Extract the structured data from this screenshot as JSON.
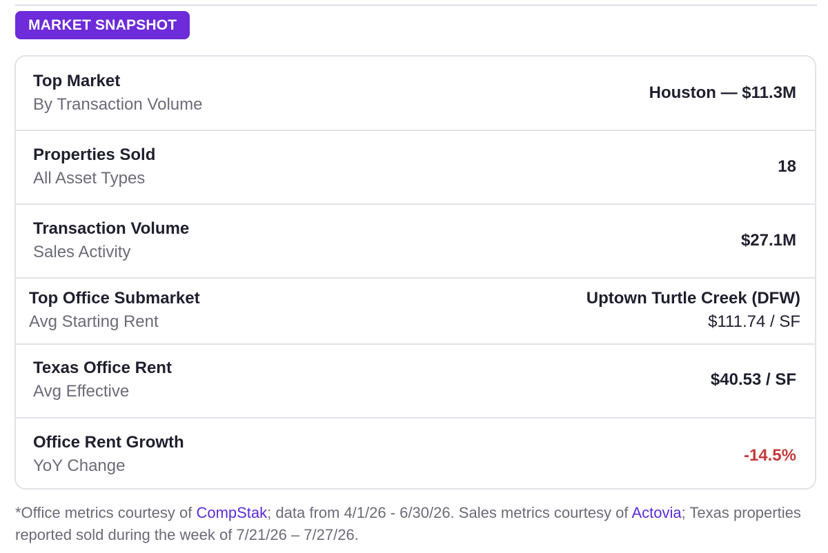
{
  "badge": {
    "label": "MARKET SNAPSHOT"
  },
  "rows": [
    {
      "label": "Top Market",
      "sub": "By Transaction Volume",
      "value": "Houston — $11.3M"
    },
    {
      "label": "Properties Sold",
      "sub": "All Asset Types",
      "value": "18"
    },
    {
      "label": "Transaction Volume",
      "sub": "Sales Activity",
      "value": "$27.1M"
    },
    {
      "label": "Top Office Submarket",
      "sub": "Avg Starting Rent",
      "value": "Uptown Turtle Creek (DFW)",
      "value_sub": "$111.74 / SF"
    },
    {
      "label": "Texas Office Rent",
      "sub": "Avg Effective",
      "value": "$40.53 / SF"
    },
    {
      "label": "Office Rent Growth",
      "sub": "YoY Change",
      "value": "-14.5%"
    }
  ],
  "footnote": {
    "part1": "*Office metrics courtesy of ",
    "link1": "CompStak",
    "part2": "; data from 4/1/26 - 6/30/26. Sales metrics courtesy of ",
    "link2": "Actovia",
    "part3": "; Texas properties reported sold during the week of 7/21/26 – 7/27/26."
  },
  "colors": {
    "badge_bg": "#6d2bd9",
    "link": "#5b2bd9",
    "negative": "#c33a3a"
  }
}
